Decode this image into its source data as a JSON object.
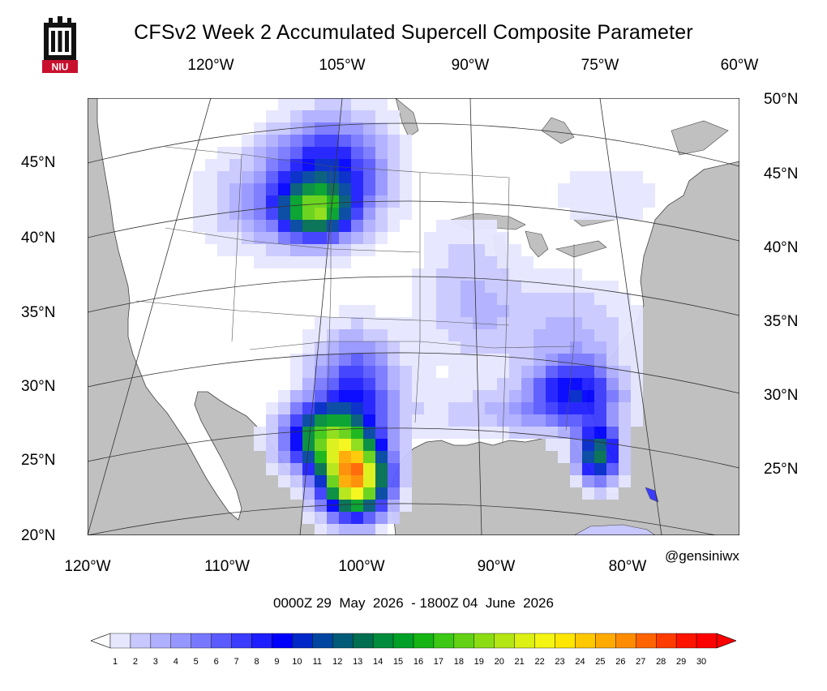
{
  "title": "CFSv2 Week 2 Accumulated Supercell Composite Parameter",
  "logo": {
    "name": "niu-logo",
    "text": "NIU"
  },
  "top_lon_labels": [
    "120°W",
    "105°W",
    "90°W",
    "75°W",
    "60°W"
  ],
  "bottom_lon_labels": [
    "120°W",
    "110°W",
    "100°W",
    "90°W",
    "80°W"
  ],
  "left_lat_labels": [
    "45°N",
    "40°N",
    "35°N",
    "30°N",
    "25°N",
    "20°N"
  ],
  "right_lat_labels": [
    "50°N",
    "45°N",
    "40°N",
    "35°N",
    "30°N",
    "25°N"
  ],
  "credit": "@gensiniwx",
  "date_range": "0000Z 29  May  2026  - 1800Z 04  June  2026",
  "colorbar": {
    "labels": [
      "1",
      "2",
      "3",
      "4",
      "5",
      "6",
      "7",
      "8",
      "9",
      "10",
      "11",
      "12",
      "13",
      "14",
      "15",
      "16",
      "17",
      "18",
      "19",
      "20",
      "21",
      "22",
      "23",
      "24",
      "25",
      "26",
      "27",
      "28",
      "29",
      "30"
    ],
    "colors": [
      "#e6e6ff",
      "#c8c8ff",
      "#afafff",
      "#9696ff",
      "#7878ff",
      "#5a5aff",
      "#3c3cff",
      "#1e1eff",
      "#0000ff",
      "#0028c8",
      "#0046a0",
      "#005a78",
      "#006e50",
      "#008c3c",
      "#00a028",
      "#14b414",
      "#3cc814",
      "#64d214",
      "#8cdc14",
      "#b4e614",
      "#dcf014",
      "#f5f514",
      "#ffe600",
      "#ffc800",
      "#ffaa00",
      "#ff8c00",
      "#ff6400",
      "#ff3c00",
      "#ff1400",
      "#ff0000"
    ]
  },
  "map_colors": {
    "land": "#ffffff",
    "ocean": "#c0c0c0"
  }
}
